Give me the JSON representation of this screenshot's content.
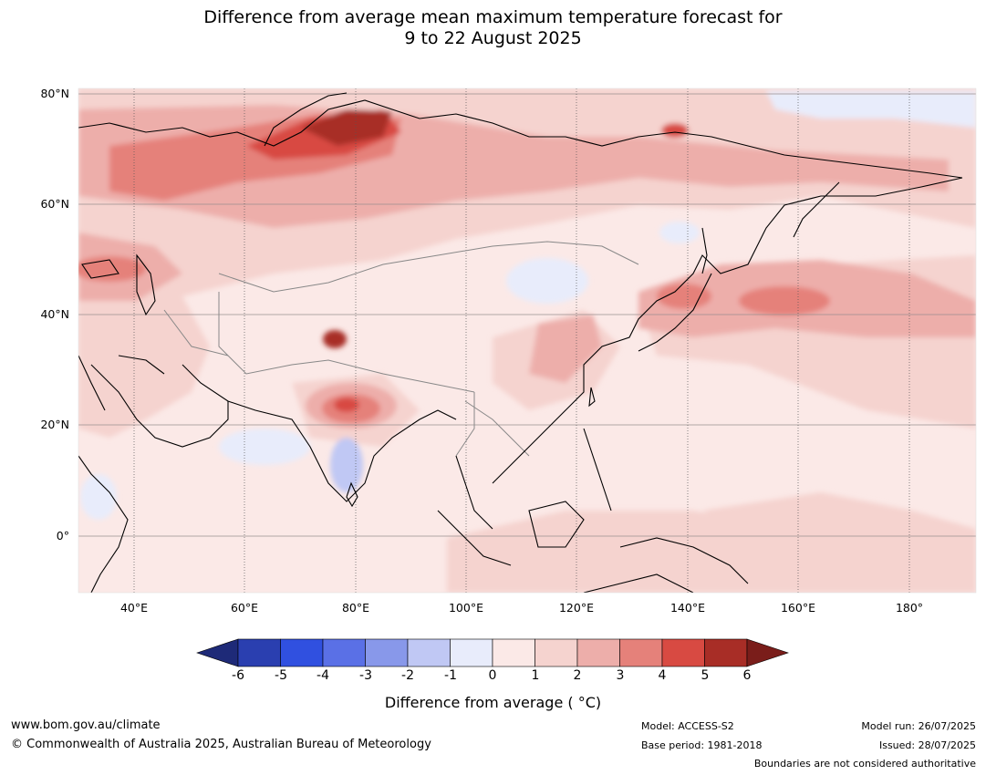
{
  "title_line1": "Difference from average mean maximum temperature forecast for",
  "title_line2": "9 to 22 August 2025",
  "lat_labels": [
    "80°N",
    "60°N",
    "40°N",
    "20°N",
    "0°"
  ],
  "lon_labels": [
    "40°E",
    "60°E",
    "80°E",
    "100°E",
    "120°E",
    "140°E",
    "160°E",
    "180°"
  ],
  "legend": {
    "title": "Difference from average ( °C)",
    "ticks": [
      "-6",
      "-5",
      "-4",
      "-3",
      "-2",
      "-1",
      "0",
      "1",
      "2",
      "3",
      "4",
      "5",
      "6"
    ],
    "colors": [
      "#1e2a78",
      "#2a3fb0",
      "#3050e0",
      "#5a70e6",
      "#8898ea",
      "#c0c8f4",
      "#e8ecfb",
      "#fbe9e7",
      "#f5d3cf",
      "#edaeaa",
      "#e5817a",
      "#d84a42",
      "#a82d26",
      "#7a1d1a"
    ]
  },
  "footer": {
    "url": "www.bom.gov.au/climate",
    "copyright": "© Commonwealth of Australia 2025, Australian Bureau of Meteorology",
    "model": "Model: ACCESS-S2",
    "base_period": "Base period: 1981-2018",
    "model_run": "Model run: 26/07/2025",
    "issued": "Issued: 28/07/2025",
    "disclaimer": "Boundaries are not considered authoritative"
  }
}
